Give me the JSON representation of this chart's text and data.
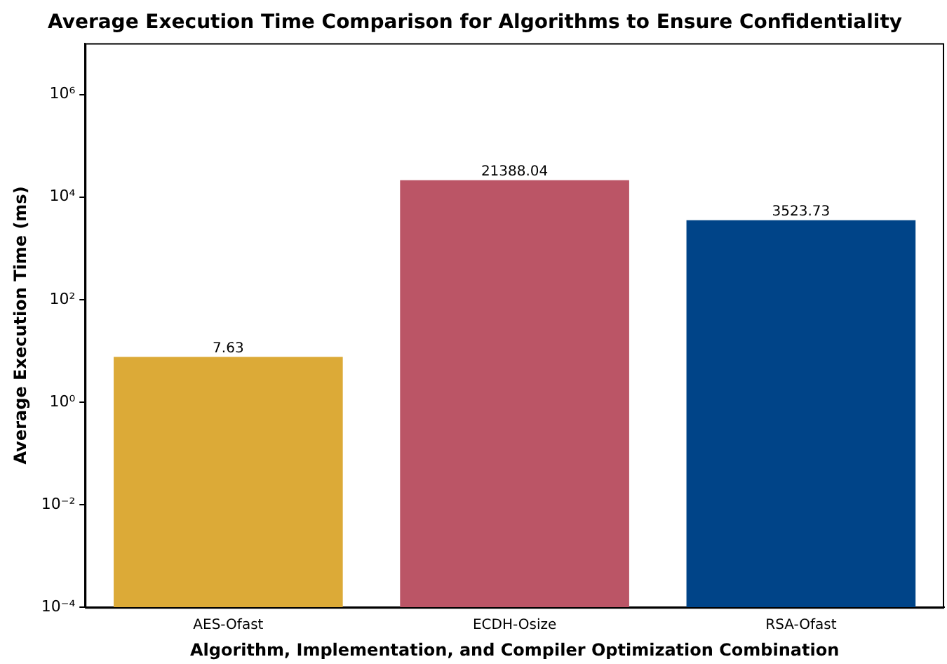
{
  "chart_data": {
    "type": "bar",
    "title": "Average Execution Time Comparison for Algorithms to Ensure Confidentiality",
    "xlabel": "Algorithm, Implementation, and Compiler Optimization Combination",
    "ylabel": "Average Execution Time (ms)",
    "categories": [
      "AES-Ofast",
      "ECDH-Osize",
      "RSA-Ofast"
    ],
    "values": [
      7.63,
      21388.04,
      3523.73
    ],
    "colors": [
      "#dcaa37",
      "#bb5566",
      "#004488"
    ],
    "log": "y",
    "ylim": [
      0.0001,
      10000000
    ],
    "yticks": [
      {
        "value": 0.0001,
        "label": "10⁻⁴"
      },
      {
        "value": 0.01,
        "label": "10⁻²"
      },
      {
        "value": 1,
        "label": "10⁰"
      },
      {
        "value": 100,
        "label": "10²"
      },
      {
        "value": 10000,
        "label": "10⁴"
      },
      {
        "value": 1000000,
        "label": "10⁶"
      }
    ],
    "data_labels": true,
    "grid": false,
    "legend": false
  }
}
